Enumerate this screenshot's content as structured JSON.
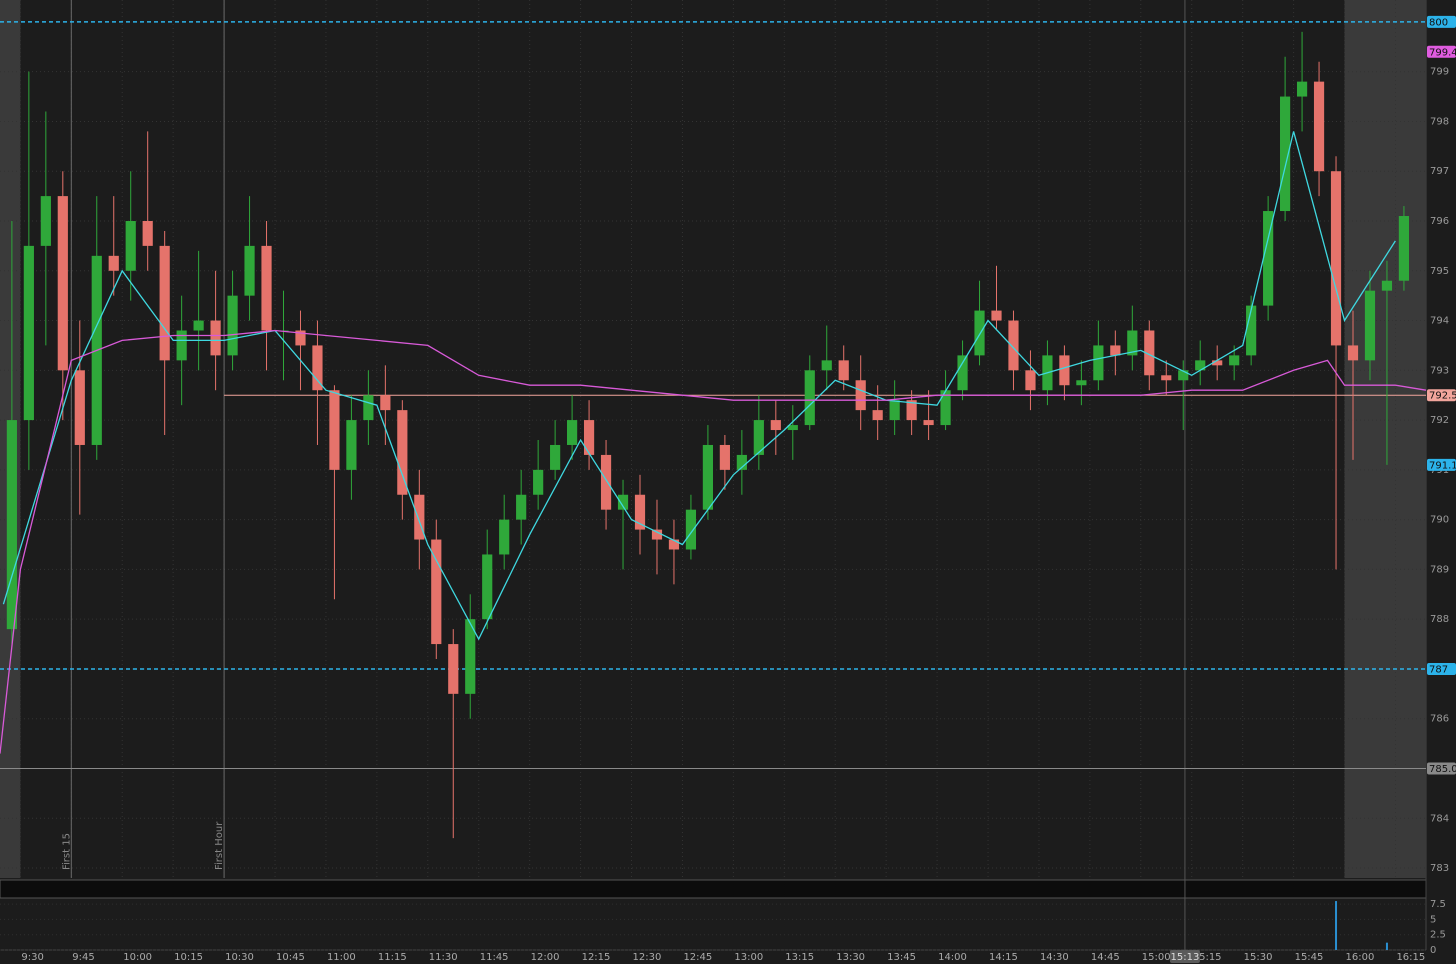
{
  "chart_data": {
    "type": "candlestick",
    "xlim": [
      "9:24",
      "16:24"
    ],
    "ylim": [
      782.8,
      800.44
    ],
    "yticks": [
      783,
      784,
      785,
      786,
      787,
      788,
      789,
      790,
      791,
      792,
      793,
      794,
      795,
      796,
      797,
      798,
      799
    ],
    "xticks": [
      "9:30",
      "9:45",
      "10:00",
      "10:15",
      "10:30",
      "10:45",
      "11:00",
      "11:15",
      "11:30",
      "11:45",
      "12:00",
      "12:15",
      "12:30",
      "12:45",
      "13:00",
      "13:15",
      "13:30",
      "13:45",
      "14:00",
      "14:15",
      "14:30",
      "14:45",
      "15:00",
      "15:15",
      "15:30",
      "15:45",
      "16:00",
      "16:15"
    ],
    "grid": true,
    "regular_session": [
      "9:30",
      "16:00"
    ],
    "up_color": "#2fa83a",
    "down_color": "#e5736b",
    "x": [
      "9:25",
      "9:30",
      "9:35",
      "9:40",
      "9:45",
      "9:50",
      "9:55",
      "10:00",
      "10:05",
      "10:10",
      "10:15",
      "10:20",
      "10:25",
      "10:30",
      "10:35",
      "10:40",
      "10:45",
      "10:50",
      "10:55",
      "11:00",
      "11:05",
      "11:10",
      "11:15",
      "11:20",
      "11:25",
      "11:30",
      "11:35",
      "11:40",
      "11:45",
      "11:50",
      "11:55",
      "12:00",
      "12:05",
      "12:10",
      "12:15",
      "12:20",
      "12:25",
      "12:30",
      "12:35",
      "12:40",
      "12:45",
      "12:50",
      "12:55",
      "13:00",
      "13:05",
      "13:10",
      "13:15",
      "13:20",
      "13:25",
      "13:30",
      "13:35",
      "13:40",
      "13:45",
      "13:50",
      "13:55",
      "14:00",
      "14:05",
      "14:10",
      "14:15",
      "14:20",
      "14:25",
      "14:30",
      "14:35",
      "14:40",
      "14:45",
      "14:50",
      "14:55",
      "15:00",
      "15:05",
      "15:10",
      "15:15",
      "15:20",
      "15:25",
      "15:30",
      "15:35",
      "15:40",
      "15:45",
      "15:50",
      "15:55",
      "16:00",
      "16:05",
      "16:10",
      "16:15"
    ],
    "open": [
      787.8,
      792,
      795.5,
      796.5,
      793,
      791.5,
      795.3,
      795,
      796,
      795.5,
      793.2,
      793.8,
      794,
      793.3,
      794.5,
      795.5,
      793.8,
      793.8,
      793.5,
      792.6,
      791,
      792,
      792.5,
      792.2,
      790.5,
      789.6,
      787.5,
      786.5,
      788,
      789.3,
      790,
      790.5,
      791,
      791.5,
      792,
      791.3,
      790.2,
      790.5,
      789.8,
      789.6,
      789.4,
      790.2,
      791.5,
      791,
      791.3,
      792,
      791.8,
      791.9,
      793,
      793.2,
      792.8,
      792.2,
      792,
      792.4,
      792,
      791.9,
      792.6,
      793.3,
      794.2,
      794,
      793,
      792.6,
      793.3,
      792.7,
      792.8,
      793.5,
      793.3,
      793.8,
      792.9,
      792.8,
      793,
      793.2,
      793.1,
      793.3,
      794.3,
      796.2,
      798.5,
      798.8,
      797,
      793.5,
      793.2,
      794.6,
      794.8
    ],
    "high": [
      796,
      799,
      798.2,
      797,
      794,
      796.5,
      796.5,
      797,
      797.8,
      795.8,
      794.5,
      795.4,
      795,
      795,
      796.5,
      796,
      794.6,
      794.2,
      794,
      792.7,
      792.5,
      793,
      793.1,
      792.4,
      791,
      790,
      787.8,
      788.5,
      789.8,
      790.5,
      791,
      791.6,
      792,
      792.5,
      792.4,
      791.6,
      790.8,
      790.9,
      790.4,
      790,
      790.5,
      791.9,
      791.7,
      791.8,
      792.5,
      792.4,
      792.3,
      793.3,
      793.9,
      793.5,
      793.3,
      792.7,
      792.8,
      792.6,
      792.6,
      793,
      793.6,
      794.8,
      795.1,
      794.2,
      793.4,
      793.6,
      793.5,
      793.2,
      794,
      793.8,
      794.3,
      794,
      793.2,
      793.2,
      793.6,
      793.5,
      793.5,
      794.5,
      796.5,
      799.3,
      799.8,
      799.2,
      797.3,
      794.2,
      795,
      795.2,
      796.3
    ],
    "low": [
      787.5,
      791,
      793.5,
      792,
      790.1,
      791.2,
      794.5,
      794.4,
      795,
      791.7,
      792.3,
      793,
      792.6,
      793,
      794,
      793,
      792.8,
      792.6,
      791.5,
      788.4,
      790.4,
      791.5,
      791.5,
      790,
      789,
      787.2,
      783.6,
      786,
      787.8,
      789,
      789.5,
      790.2,
      790.8,
      791.2,
      791,
      789.8,
      789,
      789.3,
      788.9,
      788.7,
      789.2,
      790,
      790.6,
      790.5,
      791,
      791.3,
      791.2,
      791.8,
      792.6,
      792.6,
      791.8,
      791.6,
      791.7,
      791.7,
      791.6,
      791.8,
      792.4,
      793.1,
      793.8,
      792.6,
      792.2,
      792.3,
      792.4,
      792.3,
      792.6,
      792.9,
      793,
      792.6,
      792.5,
      791.8,
      792.7,
      792.8,
      792.8,
      793.1,
      794,
      796,
      797.8,
      796.5,
      789,
      791.2,
      792.8,
      791.1,
      794.6
    ],
    "close": [
      792,
      795.5,
      796.5,
      793,
      791.5,
      795.3,
      795,
      796,
      795.5,
      793.2,
      793.8,
      794,
      793.3,
      794.5,
      795.5,
      793.8,
      793.8,
      793.5,
      792.6,
      791,
      792,
      792.5,
      792.2,
      790.5,
      789.6,
      787.5,
      786.5,
      788,
      789.3,
      790,
      790.5,
      791,
      791.5,
      792,
      791.3,
      790.2,
      790.5,
      789.8,
      789.6,
      789.4,
      790.2,
      791.5,
      791,
      791.3,
      792,
      791.8,
      791.9,
      793,
      793.2,
      792.8,
      792.2,
      792,
      792.4,
      792,
      791.9,
      792.6,
      793.3,
      794.2,
      794,
      793,
      792.6,
      793.3,
      792.7,
      792.8,
      793.5,
      793.3,
      793.8,
      792.9,
      792.8,
      793,
      793.2,
      793.1,
      793.3,
      794.3,
      796.2,
      798.5,
      798.8,
      797,
      793.5,
      793.2,
      794.6,
      794.8,
      796.1
    ],
    "overlays": [
      {
        "color": "#3fd8e0",
        "x": [
          "9:25",
          "9:45",
          "10:00",
          "10:15",
          "10:30",
          "10:45",
          "11:00",
          "11:15",
          "11:30",
          "11:45",
          "12:00",
          "12:15",
          "12:30",
          "12:45",
          "13:00",
          "13:15",
          "13:30",
          "13:45",
          "14:00",
          "14:15",
          "14:30",
          "14:45",
          "15:00",
          "15:15",
          "15:30",
          "15:45",
          "16:00",
          "16:15"
        ],
        "values": [
          788.3,
          792.8,
          795,
          793.6,
          793.6,
          793.8,
          792.6,
          792.3,
          789.5,
          787.6,
          789.7,
          791.6,
          790,
          789.5,
          790.9,
          791.8,
          792.8,
          792.4,
          792.3,
          794,
          792.9,
          793.2,
          793.4,
          792.9,
          793.5,
          797.8,
          794,
          795.6
        ]
      },
      {
        "color": "#d85ad8",
        "x": [
          "9:24",
          "9:30",
          "9:45",
          "10:00",
          "10:15",
          "10:30",
          "10:45",
          "11:00",
          "11:15",
          "11:30",
          "11:45",
          "12:00",
          "12:15",
          "12:30",
          "12:45",
          "13:00",
          "13:15",
          "13:30",
          "13:45",
          "14:00",
          "14:15",
          "14:30",
          "14:45",
          "15:00",
          "15:15",
          "15:30",
          "15:45",
          "15:55",
          "16:00",
          "16:15",
          "16:24"
        ],
        "values": [
          785.3,
          789,
          793.2,
          793.6,
          793.7,
          793.7,
          793.8,
          793.7,
          793.6,
          793.5,
          792.9,
          792.7,
          792.7,
          792.6,
          792.5,
          792.4,
          792.4,
          792.4,
          792.4,
          792.5,
          792.5,
          792.5,
          792.5,
          792.5,
          792.6,
          792.6,
          793,
          793.2,
          792.7,
          792.7,
          792.6
        ]
      }
    ],
    "levels": [
      {
        "value": 800,
        "color": "#2cb3ea",
        "line": "dashed"
      },
      {
        "value": 799.4,
        "label": "799.4",
        "color": "#e05ce0",
        "line": "none"
      },
      {
        "value": 792.5,
        "label": "792.5",
        "color": "#f2a59c",
        "line": "solid",
        "from": "10:30"
      },
      {
        "value": 791.1,
        "label": "791.1",
        "color": "#2cb3ea",
        "line": "none"
      },
      {
        "value": 787,
        "color": "#2cb3ea",
        "line": "dashed"
      },
      {
        "value": 785.0,
        "label": "785.0",
        "color": "#8a8a8a",
        "line": "solid"
      }
    ],
    "markers": [
      {
        "x": "9:45",
        "label": "First 15"
      },
      {
        "x": "10:30",
        "label": "First Hour"
      }
    ],
    "cursor": "15:13",
    "volume": {
      "ylim": [
        0,
        8.5
      ],
      "yticks": [
        0,
        2.5,
        5,
        7.5
      ],
      "x": [
        "15:55",
        "16:10"
      ],
      "values": [
        8,
        1.2
      ],
      "color": "#2a8fd0"
    }
  }
}
